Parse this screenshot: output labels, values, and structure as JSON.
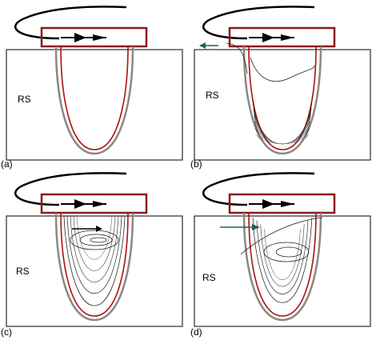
{
  "panels": [
    {
      "label": "(a)",
      "region": "RS"
    },
    {
      "label": "(b)",
      "region": "RS"
    },
    {
      "label": "(c)",
      "region": "RS"
    },
    {
      "label": "(d)",
      "region": "RS"
    }
  ]
}
